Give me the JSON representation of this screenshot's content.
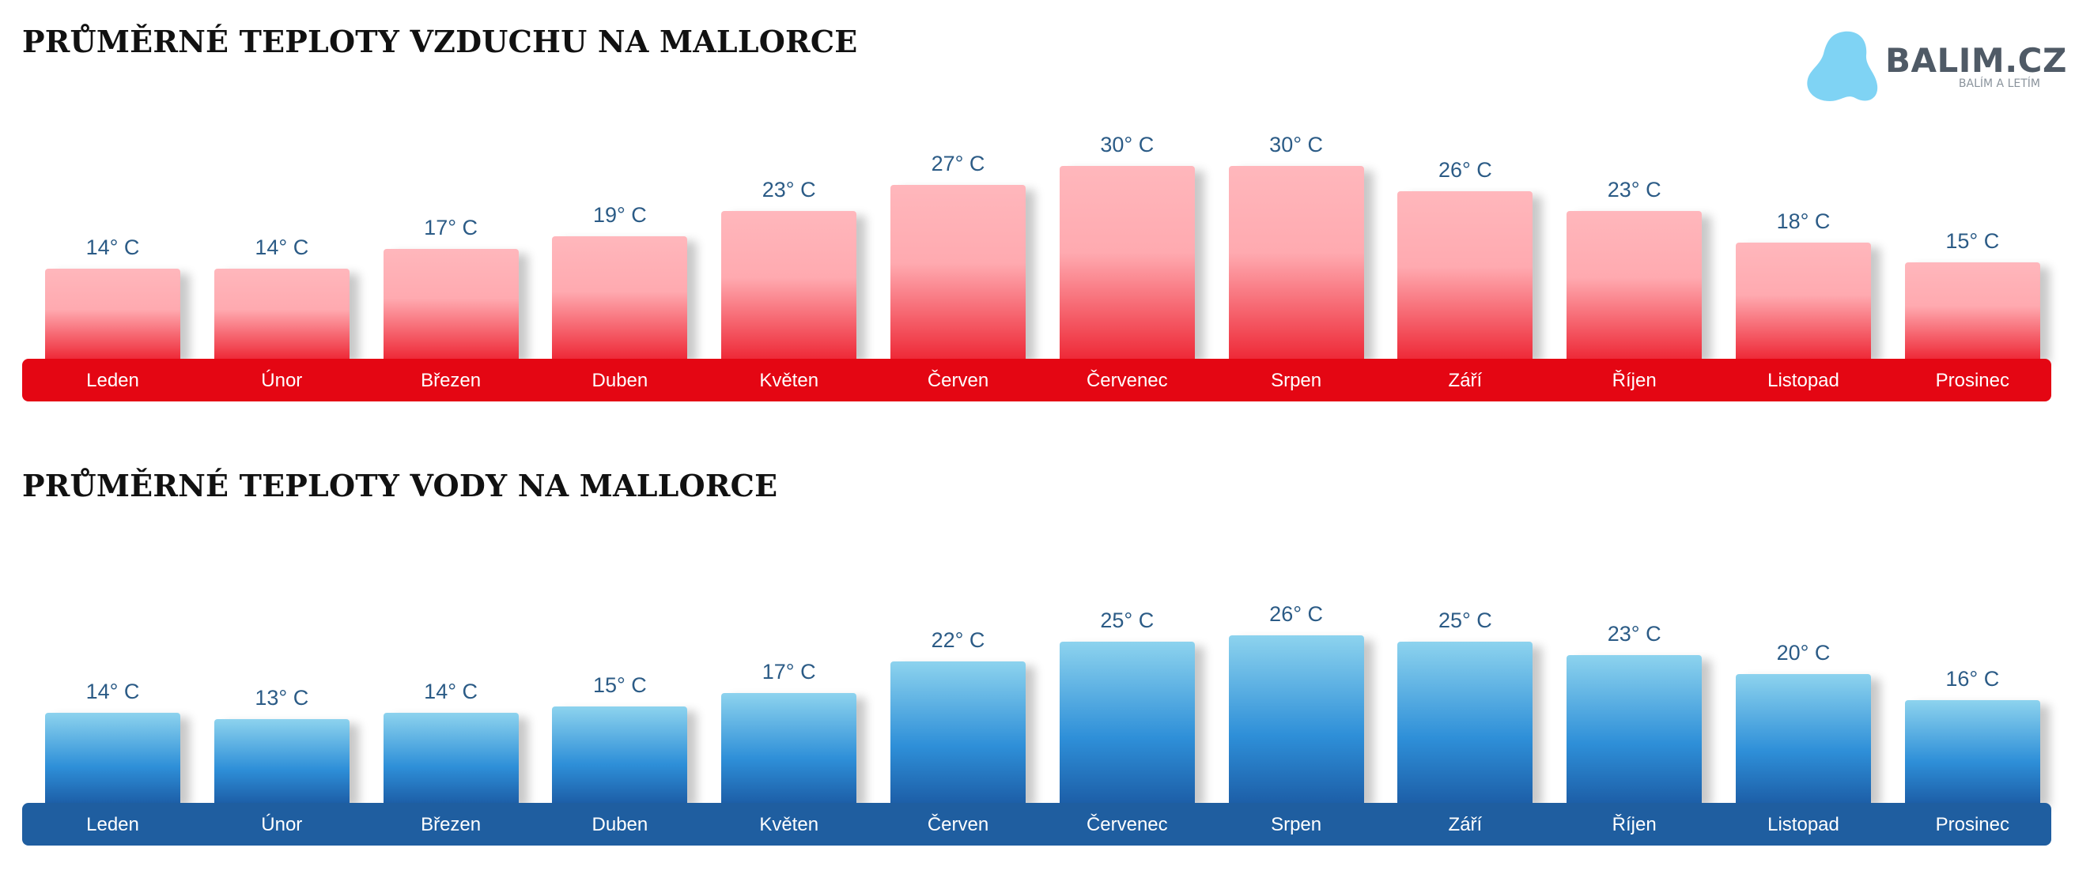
{
  "logo": {
    "name": "BALIM.CZ",
    "tagline": "BALÍM A LETÍM",
    "color": "#7fd3f4"
  },
  "chart_data": [
    {
      "type": "bar",
      "title": "PRŮMĚRNÉ TEPLOTY VZDUCHU NA MALLORCE",
      "categories": [
        "Leden",
        "Únor",
        "Březen",
        "Duben",
        "Květen",
        "Červen",
        "Červenec",
        "Srpen",
        "Září",
        "Říjen",
        "Listopad",
        "Prosinec"
      ],
      "values": [
        14,
        14,
        17,
        19,
        23,
        27,
        30,
        30,
        26,
        23,
        18,
        15
      ],
      "value_labels": [
        "14° C",
        "14° C",
        "17° C",
        "19° C",
        "23° C",
        "27° C",
        "30° C",
        "30° C",
        "26° C",
        "23° C",
        "18° C",
        "15° C"
      ],
      "unit": "° C",
      "grid": false,
      "colors": {
        "bar_top": "#ffb7bc",
        "bar_bottom": "#ee2a38",
        "band": "#e40613"
      }
    },
    {
      "type": "bar",
      "title": "PRŮMĚRNÉ TEPLOTY VODY NA MALLORCE",
      "categories": [
        "Leden",
        "Únor",
        "Březen",
        "Duben",
        "Květen",
        "Červen",
        "Červenec",
        "Srpen",
        "Září",
        "Říjen",
        "Listopad",
        "Prosinec"
      ],
      "values": [
        14,
        13,
        14,
        15,
        17,
        22,
        25,
        26,
        25,
        23,
        20,
        16
      ],
      "value_labels": [
        "14° C",
        "13° C",
        "14° C",
        "15° C",
        "17° C",
        "22° C",
        "25° C",
        "26° C",
        "25° C",
        "23° C",
        "20° C",
        "16° C"
      ],
      "unit": "° C",
      "grid": false,
      "colors": {
        "bar_top": "#8dd3ee",
        "bar_bottom": "#1d5fa8",
        "band": "#1f5ea0"
      }
    }
  ]
}
